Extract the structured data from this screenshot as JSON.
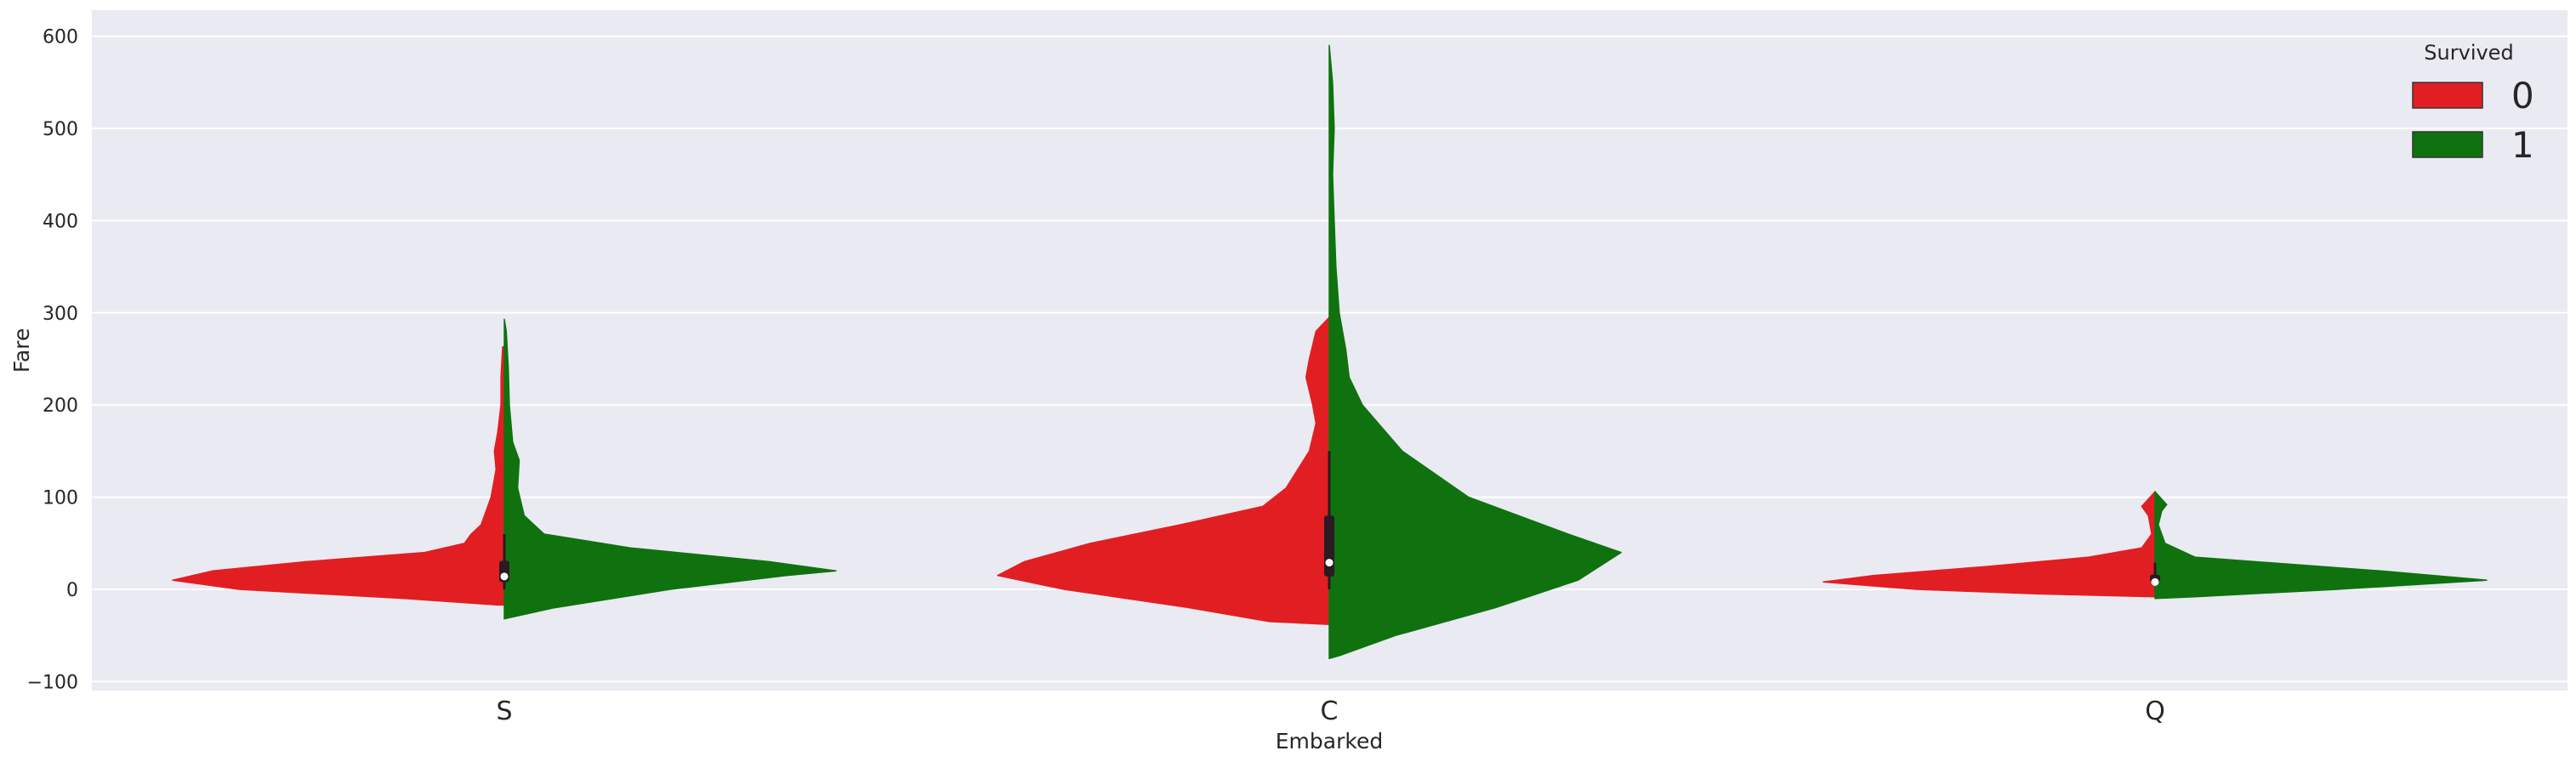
{
  "chart_data": {
    "type": "violin",
    "title": "",
    "xlabel": "Embarked",
    "ylabel": "Fare",
    "categories": [
      "S",
      "C",
      "Q"
    ],
    "ylim": [
      -105,
      625
    ],
    "yticks": [
      -100,
      0,
      100,
      200,
      300,
      400,
      500,
      600
    ],
    "grid": true,
    "split": true,
    "legend": {
      "title": "Survived",
      "placement": "top-right",
      "entries": [
        {
          "label": "0",
          "color": "#e11f22"
        },
        {
          "label": "1",
          "color": "#0f720f"
        }
      ]
    },
    "series": [
      {
        "name": "0",
        "color": "#e11f22",
        "side": "left",
        "violins": [
          {
            "category": "S",
            "profile": [
              [
                -17,
                0.02
              ],
              [
                -10,
                0.3
              ],
              [
                0,
                0.8
              ],
              [
                10,
                1.0
              ],
              [
                20,
                0.88
              ],
              [
                30,
                0.6
              ],
              [
                40,
                0.24
              ],
              [
                50,
                0.12
              ],
              [
                60,
                0.1
              ],
              [
                70,
                0.07
              ],
              [
                80,
                0.06
              ],
              [
                100,
                0.04
              ],
              [
                130,
                0.025
              ],
              [
                150,
                0.03
              ],
              [
                170,
                0.02
              ],
              [
                200,
                0.01
              ],
              [
                230,
                0.01
              ],
              [
                263,
                0.005
              ]
            ]
          },
          {
            "category": "C",
            "profile": [
              [
                -38,
                0.0
              ],
              [
                -35,
                0.18
              ],
              [
                -20,
                0.42
              ],
              [
                0,
                0.8
              ],
              [
                15,
                1.0
              ],
              [
                30,
                0.92
              ],
              [
                50,
                0.72
              ],
              [
                70,
                0.45
              ],
              [
                90,
                0.2
              ],
              [
                110,
                0.13
              ],
              [
                150,
                0.06
              ],
              [
                180,
                0.04
              ],
              [
                200,
                0.05
              ],
              [
                230,
                0.07
              ],
              [
                250,
                0.06
              ],
              [
                280,
                0.04
              ],
              [
                295,
                0.0
              ]
            ]
          },
          {
            "category": "Q",
            "profile": [
              [
                -8,
                0.0
              ],
              [
                -5,
                0.35
              ],
              [
                0,
                0.72
              ],
              [
                8,
                1.0
              ],
              [
                15,
                0.85
              ],
              [
                25,
                0.5
              ],
              [
                35,
                0.2
              ],
              [
                45,
                0.04
              ],
              [
                60,
                0.01
              ],
              [
                80,
                0.02
              ],
              [
                90,
                0.04
              ],
              [
                100,
                0.015
              ],
              [
                106,
                0.0
              ]
            ]
          }
        ]
      },
      {
        "name": "1",
        "color": "#0f720f",
        "side": "right",
        "violins": [
          {
            "category": "S",
            "profile": [
              [
                -32,
                0.0
              ],
              [
                -20,
                0.15
              ],
              [
                0,
                0.5
              ],
              [
                15,
                0.85
              ],
              [
                20,
                1.0
              ],
              [
                30,
                0.8
              ],
              [
                45,
                0.38
              ],
              [
                60,
                0.12
              ],
              [
                80,
                0.06
              ],
              [
                110,
                0.04
              ],
              [
                140,
                0.045
              ],
              [
                160,
                0.025
              ],
              [
                200,
                0.015
              ],
              [
                240,
                0.012
              ],
              [
                280,
                0.006
              ],
              [
                293,
                0.0
              ]
            ]
          },
          {
            "category": "C",
            "profile": [
              [
                -75,
                0.0
              ],
              [
                -72,
                0.03
              ],
              [
                -50,
                0.2
              ],
              [
                -20,
                0.5
              ],
              [
                10,
                0.75
              ],
              [
                40,
                0.88
              ],
              [
                60,
                0.72
              ],
              [
                100,
                0.42
              ],
              [
                150,
                0.22
              ],
              [
                200,
                0.1
              ],
              [
                230,
                0.06
              ],
              [
                260,
                0.05
              ],
              [
                300,
                0.03
              ],
              [
                350,
                0.02
              ],
              [
                400,
                0.015
              ],
              [
                450,
                0.01
              ],
              [
                500,
                0.015
              ],
              [
                550,
                0.01
              ],
              [
                590,
                0.0
              ]
            ]
          },
          {
            "category": "Q",
            "profile": [
              [
                -10,
                0.0
              ],
              [
                -8,
                0.12
              ],
              [
                0,
                0.55
              ],
              [
                10,
                1.0
              ],
              [
                20,
                0.68
              ],
              [
                35,
                0.12
              ],
              [
                50,
                0.03
              ],
              [
                70,
                0.01
              ],
              [
                85,
                0.02
              ],
              [
                92,
                0.035
              ],
              [
                100,
                0.015
              ],
              [
                106,
                0.0
              ]
            ]
          }
        ]
      }
    ],
    "box": [
      {
        "category": "S",
        "q1": 8,
        "median": 14,
        "q3": 31,
        "whisker_low": 0,
        "whisker_high": 60
      },
      {
        "category": "C",
        "q1": 14,
        "median": 29,
        "q3": 80,
        "whisker_low": 0,
        "whisker_high": 150
      },
      {
        "category": "Q",
        "q1": 7.7,
        "median": 8,
        "q3": 16,
        "whisker_low": 6,
        "whisker_high": 29
      }
    ]
  }
}
